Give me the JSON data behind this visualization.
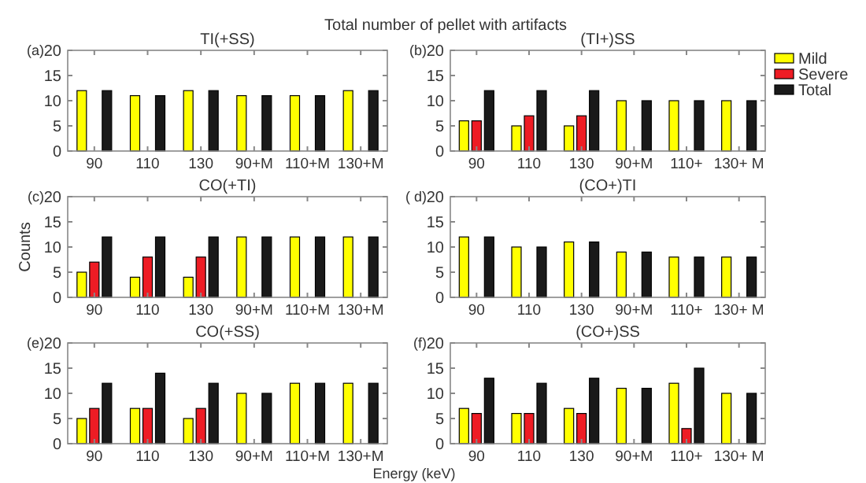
{
  "chart_data": [
    {
      "type": "bar",
      "title": "TI(+SS)",
      "annotations": [
        "(a)",
        "Total number of pellet with artifacts"
      ],
      "categories": [
        "90",
        "110",
        "130",
        "90+M",
        "110+M",
        "130+M"
      ],
      "series": [
        {
          "color": "#ffff00",
          "values": [
            12,
            11,
            12,
            11,
            11,
            12
          ]
        },
        {
          "color": "#1a1a1a",
          "values": [
            12,
            11,
            12,
            11,
            11,
            12
          ]
        }
      ],
      "ylim": [
        0,
        20
      ],
      "yticks": [
        0,
        5,
        10,
        15,
        20
      ],
      "grid": false,
      "legend": false
    },
    {
      "type": "bar",
      "title": "(TI+)SS",
      "annotations": [
        "(b)"
      ],
      "categories": [
        "90",
        "110",
        "130",
        "90+M",
        "110+",
        "130+ M"
      ],
      "series": [
        {
          "name": "Mild",
          "color": "#ffff00",
          "values": [
            6,
            5,
            5,
            10,
            10,
            10
          ]
        },
        {
          "name": "Severe",
          "color": "#ee1c24",
          "values": [
            6,
            7,
            7,
            null,
            null,
            null
          ]
        },
        {
          "name": "Total",
          "color": "#1a1a1a",
          "values": [
            12,
            12,
            12,
            10,
            10,
            10
          ]
        }
      ],
      "ylim": [
        0,
        20
      ],
      "yticks": [
        0,
        5,
        10,
        15,
        20
      ],
      "grid": false,
      "legend": "right"
    },
    {
      "type": "bar",
      "title": "CO(+TI)",
      "ylabel": "Counts",
      "annotations": [
        "(c)"
      ],
      "categories": [
        "90",
        "110",
        "130",
        "90+M",
        "110+M",
        "130+M"
      ],
      "series": [
        {
          "color": "#ffff00",
          "values": [
            5,
            4,
            4,
            12,
            12,
            12
          ]
        },
        {
          "color": "#ee1c24",
          "values": [
            7,
            8,
            8,
            null,
            null,
            null
          ]
        },
        {
          "color": "#1a1a1a",
          "values": [
            12,
            12,
            12,
            12,
            12,
            12
          ]
        }
      ],
      "ylim": [
        0,
        20
      ],
      "yticks": [
        0,
        5,
        10,
        15,
        20
      ],
      "grid": false,
      "legend": false
    },
    {
      "type": "bar",
      "title": "(CO+)TI",
      "annotations": [
        "( d)"
      ],
      "categories": [
        "90",
        "110",
        "130",
        "90+M",
        "110+",
        "130+ M"
      ],
      "series": [
        {
          "color": "#ffff00",
          "values": [
            12,
            10,
            11,
            9,
            8,
            8
          ]
        },
        {
          "color": "#1a1a1a",
          "values": [
            12,
            10,
            11,
            9,
            8,
            8
          ]
        }
      ],
      "ylim": [
        0,
        20
      ],
      "yticks": [
        0,
        5,
        10,
        15,
        20
      ],
      "grid": false,
      "legend": false
    },
    {
      "type": "bar",
      "title": "CO(+SS)",
      "xlabel": "Energy (keV)",
      "annotations": [
        "(e)"
      ],
      "categories": [
        "90",
        "110",
        "130",
        "90+M",
        "110+M",
        "130+M"
      ],
      "series": [
        {
          "color": "#ffff00",
          "values": [
            5,
            7,
            5,
            10,
            12,
            12
          ]
        },
        {
          "color": "#ee1c24",
          "values": [
            7,
            7,
            7,
            null,
            null,
            null
          ]
        },
        {
          "color": "#1a1a1a",
          "values": [
            12,
            14,
            12,
            10,
            12,
            12
          ]
        }
      ],
      "ylim": [
        0,
        20
      ],
      "yticks": [
        0,
        5,
        10,
        15,
        20
      ],
      "grid": false,
      "legend": false
    },
    {
      "type": "bar",
      "title": "(CO+)SS",
      "annotations": [
        "(f)"
      ],
      "categories": [
        "90",
        "110",
        "130",
        "90+M",
        "110+",
        "130+ M"
      ],
      "series": [
        {
          "color": "#ffff00",
          "values": [
            7,
            6,
            7,
            11,
            12,
            10
          ]
        },
        {
          "color": "#ee1c24",
          "values": [
            6,
            6,
            6,
            null,
            3,
            null
          ]
        },
        {
          "color": "#1a1a1a",
          "values": [
            13,
            12,
            13,
            11,
            15,
            10
          ]
        }
      ],
      "ylim": [
        0,
        20
      ],
      "yticks": [
        0,
        5,
        10,
        15,
        20
      ],
      "grid": false,
      "legend": false
    }
  ]
}
